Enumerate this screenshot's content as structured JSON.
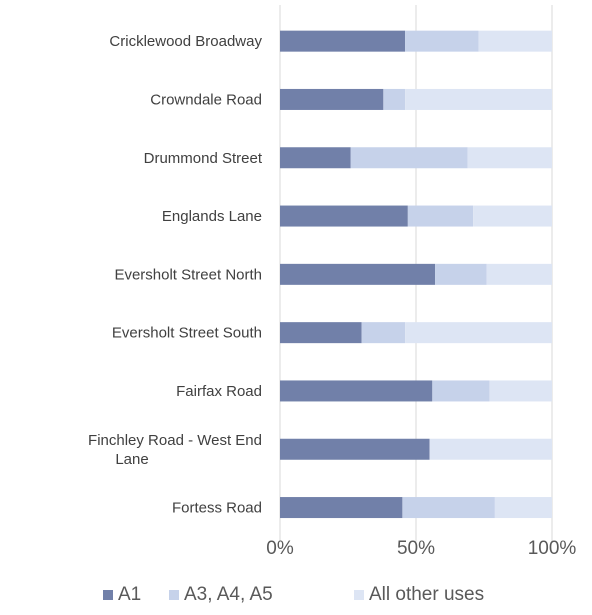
{
  "chart_data": {
    "type": "bar",
    "orientation": "horizontal",
    "stacked": true,
    "percent": true,
    "categories": [
      "Cricklewood Broadway",
      "Crowndale Road",
      "Drummond Street",
      "Englands Lane",
      "Eversholt Street North",
      "Eversholt Street South",
      "Fairfax Road",
      "Finchley Road - West End Lane",
      "Fortess Road"
    ],
    "category_lines": [
      [
        "Cricklewood Broadway"
      ],
      [
        "Crowndale Road"
      ],
      [
        "Drummond Street"
      ],
      [
        "Englands Lane"
      ],
      [
        "Eversholt Street North"
      ],
      [
        "Eversholt Street South"
      ],
      [
        "Fairfax Road"
      ],
      [
        "Finchley Road - West End",
        "Lane"
      ],
      [
        "Fortess Road"
      ]
    ],
    "series": [
      {
        "name": "A1",
        "color": "#7180a9",
        "values": [
          46,
          38,
          26,
          47,
          57,
          30,
          56,
          55,
          45
        ]
      },
      {
        "name": "A3, A4, A5",
        "color": "#c6d2ea",
        "values": [
          27,
          8,
          43,
          24,
          19,
          16,
          21,
          0,
          34
        ]
      },
      {
        "name": "All other uses",
        "color": "#dde5f4",
        "values": [
          27,
          54,
          31,
          29,
          24,
          54,
          23,
          45,
          21
        ]
      }
    ],
    "x_ticks": [
      "0%",
      "50%",
      "100%"
    ],
    "xlim": [
      0,
      100
    ],
    "grid": true,
    "legend": "bottom"
  }
}
